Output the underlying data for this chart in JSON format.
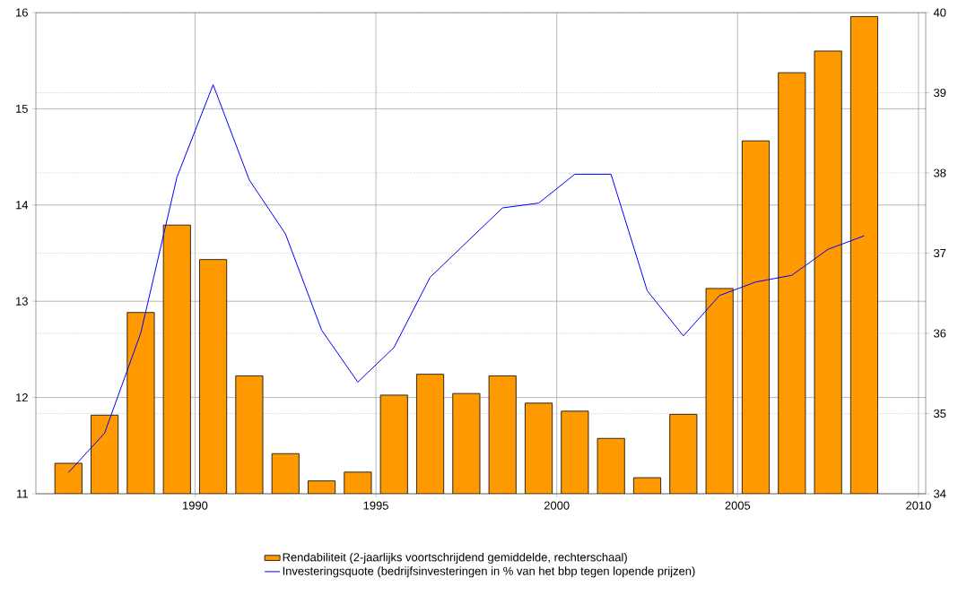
{
  "chart_data": {
    "type": "bar",
    "x": [
      1986.5,
      1987.5,
      1988.5,
      1989.5,
      1990.5,
      1991.5,
      1992.5,
      1993.5,
      1994.5,
      1995.5,
      1996.5,
      1997.5,
      1998.5,
      1999.5,
      2000.5,
      2001.5,
      2002.5,
      2003.5,
      2004.5,
      2005.5,
      2006.5,
      2007.5,
      2008.5
    ],
    "series": [
      {
        "name": "Rendabiliteit (2-jaarlijks voortschrijdend gemiddelde, rechterschaal)",
        "axis": "y2",
        "color": "#ff9900",
        "values": [
          34.38,
          34.98,
          36.26,
          37.35,
          36.92,
          35.47,
          34.5,
          34.16,
          34.27,
          35.23,
          35.49,
          35.25,
          35.47,
          35.13,
          35.03,
          34.69,
          34.2,
          34.99,
          36.56,
          38.4,
          39.25,
          39.52,
          39.95
        ]
      },
      {
        "name": "Investeringsquote (bedrijfsinvesteringen in % van het bbp tegen lopende prijzen)",
        "type": "line",
        "color": "#0000ff",
        "values": [
          11.22,
          11.63,
          12.67,
          14.29,
          15.25,
          14.26,
          13.7,
          12.7,
          12.16,
          12.52,
          13.25,
          13.61,
          13.97,
          14.02,
          14.32,
          14.32,
          13.11,
          12.64,
          13.06,
          13.2,
          13.27,
          13.54,
          13.68
        ]
      }
    ],
    "xlim": [
      1985.6,
      2010.2
    ],
    "xticks": [
      1990,
      1995,
      2000,
      2005,
      2010
    ],
    "ylim": [
      11,
      16
    ],
    "yticks": [
      11,
      12,
      13,
      14,
      15,
      16
    ],
    "y2lim": [
      34,
      40
    ],
    "y2ticks": [
      34,
      35,
      36,
      37,
      38,
      39,
      40
    ],
    "grid": true,
    "legend": "bottom"
  }
}
